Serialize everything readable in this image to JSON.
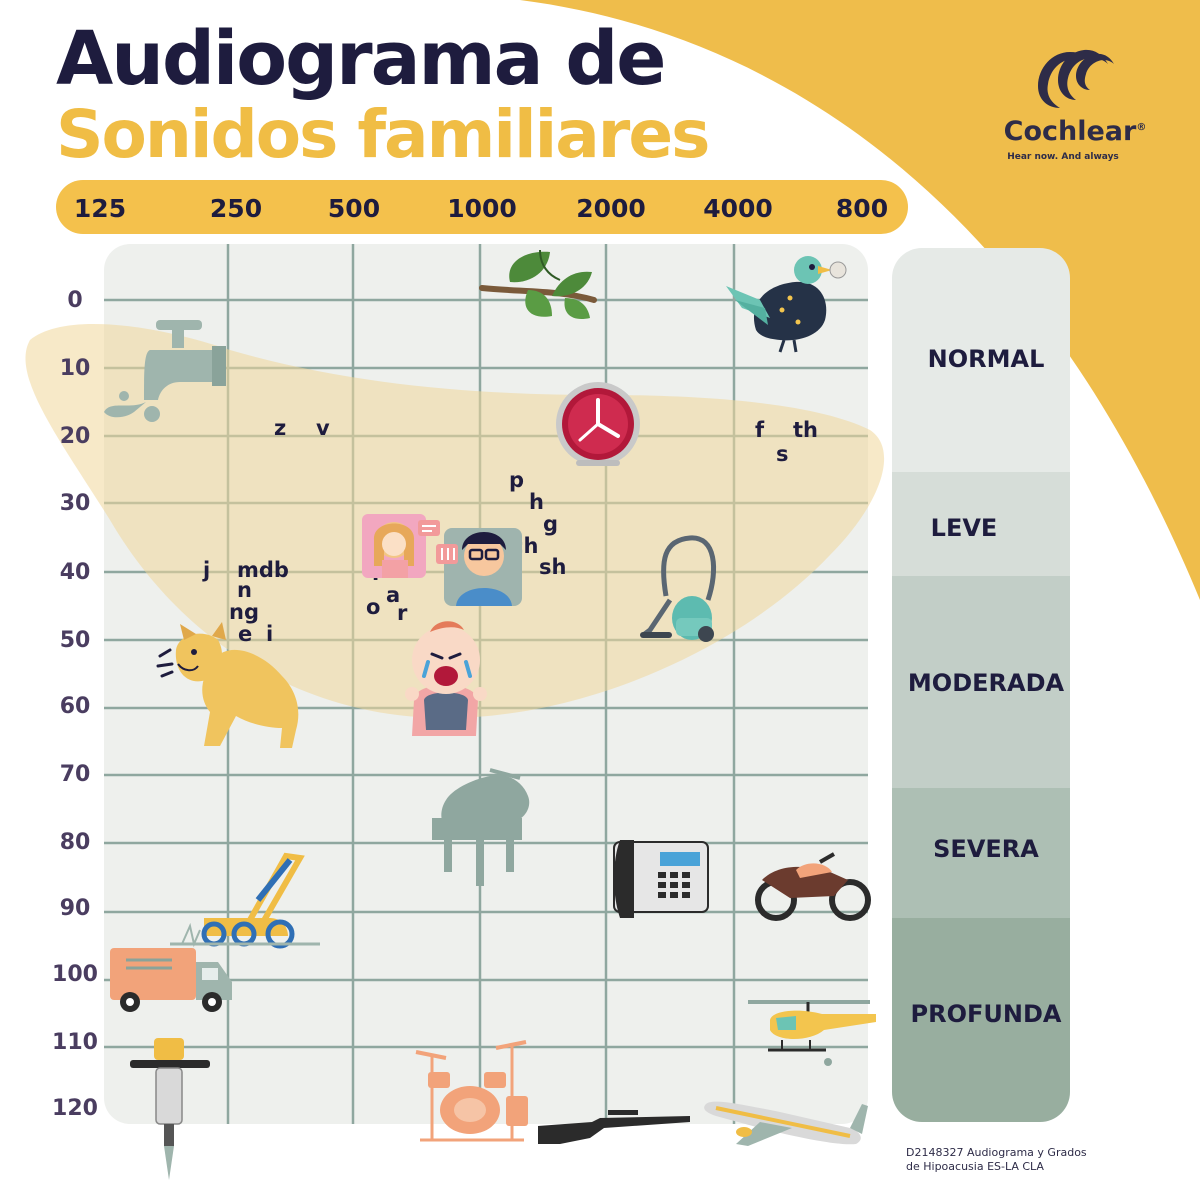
{
  "title_line1": "Audiograma de",
  "title_line2": "Sonidos familiares",
  "logo": {
    "name": "Cochlear",
    "mark": "®",
    "tagline": "Hear now. And always"
  },
  "frequencies": [
    "125",
    "250",
    "500",
    "1000",
    "2000",
    "4000",
    "800"
  ],
  "db_levels": [
    "0",
    "10",
    "20",
    "30",
    "40",
    "50",
    "60",
    "70",
    "80",
    "90",
    "100",
    "110",
    "120"
  ],
  "hearing_levels": [
    "NORMAL",
    "LEVE",
    "MODERADA",
    "SEVERA",
    "PROFUNDA"
  ],
  "phonemes": [
    "z",
    "v",
    "f",
    "th",
    "s",
    "p",
    "h",
    "g",
    "ch",
    "sh",
    "j",
    "mdb",
    "n",
    "ng",
    "e",
    "i",
    "u",
    "l",
    "a",
    "o",
    "r"
  ],
  "sounds": [
    "leaves-rustling",
    "bird-chirping",
    "dripping-faucet",
    "clock-ticking",
    "vacuum-cleaner",
    "dog-barking",
    "baby-crying",
    "people-talking",
    "piano",
    "telephone",
    "motorcycle",
    "lawn-mower",
    "truck",
    "helicopter",
    "jackhammer",
    "drums",
    "rifle",
    "airplane"
  ],
  "footer": {
    "line1": "D2148327 Audiograma y Grados",
    "line2": "de Hipoacusia ES-LA CLA"
  },
  "colors": {
    "navy": "#1e1c3e",
    "yellow": "#f0bd45",
    "grid_bg": "#eef0ed",
    "grid_line": "#8fa79f",
    "banana": "#f1dba8"
  }
}
